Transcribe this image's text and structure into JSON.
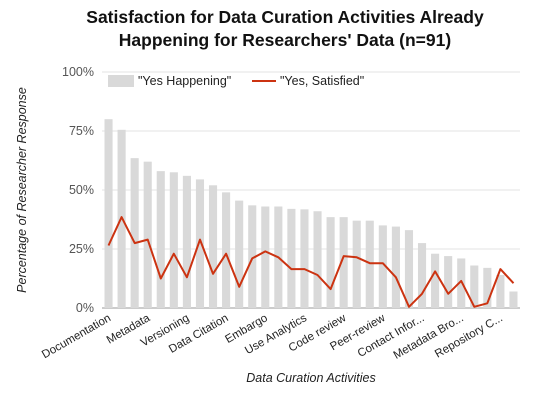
{
  "title_lines": [
    "Satisfaction for Data Curation Activities Already",
    "Happening for Researchers' Data (n=91)"
  ],
  "chart_data": {
    "type": "bar",
    "title": "Satisfaction for Data Curation Activities Already Happening for Researchers' Data (n=91)",
    "xlabel": "Data Curation Activities",
    "ylabel": "Percentage of Researcher Response",
    "ylim": [
      0,
      100
    ],
    "yticks": [
      "0%",
      "25%",
      "50%",
      "75%",
      "100%"
    ],
    "grid": true,
    "legend_position": "top",
    "categories": [
      "Documentation",
      "",
      "",
      "Metadata",
      "",
      "",
      "Versioning",
      "",
      "",
      "Data Citation",
      "",
      "",
      "Embargo",
      "",
      "",
      "Use Analytics",
      "",
      "",
      "Code review",
      "",
      "",
      "Peer-review",
      "",
      "",
      "Contact Infor...",
      "",
      "",
      "Metadata Bro...",
      "",
      "",
      "Repository C...",
      ""
    ],
    "series": [
      {
        "name": "\"Yes Happening\"",
        "type": "bar",
        "color": "#d9d9d9",
        "values": [
          80,
          75.5,
          63.5,
          62,
          58,
          57.5,
          56,
          54.5,
          52,
          49,
          45.5,
          43.5,
          43,
          43,
          42,
          41.8,
          41,
          38.5,
          38.5,
          37,
          37,
          35,
          34.5,
          33,
          27.5,
          23,
          22,
          21,
          18,
          17,
          14,
          7
        ]
      },
      {
        "name": "\"Yes, Satisfied\"",
        "type": "line",
        "color": "#cc3311",
        "values": [
          26.5,
          38.5,
          27.5,
          29,
          12.5,
          23,
          13,
          29,
          14.5,
          23,
          9,
          21,
          24,
          21.5,
          16.5,
          16.5,
          14,
          8,
          22,
          21.5,
          19,
          19,
          13,
          0.5,
          6,
          15.5,
          6,
          11.5,
          0.5,
          2,
          16.5,
          10.5
        ]
      }
    ]
  }
}
